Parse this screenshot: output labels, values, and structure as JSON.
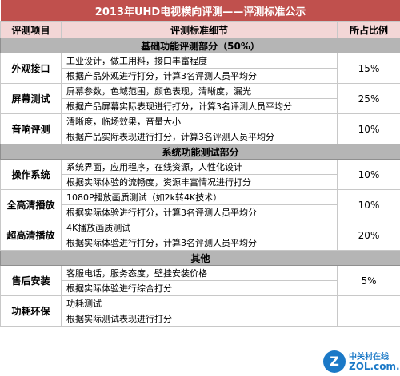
{
  "title": "2013年UHD电视横向评测——评测标准公示",
  "columns": [
    "评测项目",
    "评测标准细节",
    "所占比例"
  ],
  "sections": {
    "basic": "基础功能评测部分（50%）",
    "system": "系统功能测试部分",
    "other": "其他"
  },
  "items": [
    {
      "name": "外观接口",
      "details": [
        "工业设计，做工用料，接口丰富程度",
        "根据产品外观进行打分，计算3名评测人员平均分"
      ],
      "percent": "15%"
    },
    {
      "name": "屏幕测试",
      "details": [
        "屏幕参数，色域范围，颜色表现，清晰度，漏光",
        "根据产品屏幕实际表现进行打分，计算3名评测人员平均分"
      ],
      "percent": "25%"
    },
    {
      "name": "音响评测",
      "details": [
        "清晰度，临场效果，音量大小",
        "根据产品实际表现进行打分，计算3名评测人员平均分"
      ],
      "percent": "10%"
    },
    {
      "name": "操作系统",
      "details": [
        "系统界面，应用程序，在线资源，人性化设计",
        "根据实际体验的流畅度，资源丰富情况进行打分"
      ],
      "percent": "10%"
    },
    {
      "name": "全高清播放",
      "details": [
        "1080P播放画质测试（如2k转4K技术）",
        "根据实际体验进行打分，计算3名评测人员平均分"
      ],
      "percent": "10%"
    },
    {
      "name": "超高清播放",
      "details": [
        "4K播放画质测试",
        "根据实际体验进行打分，计算3名评测人员平均分"
      ],
      "percent": "20%"
    },
    {
      "name": "售后安装",
      "details": [
        "客服电话，服务态度，壁挂安装价格",
        "根据实际体验进行综合打分"
      ],
      "percent": "5%"
    },
    {
      "name": "功耗环保",
      "details": [
        "功耗测试",
        "根据实际测试表现进行打分"
      ],
      "percent": ""
    }
  ],
  "watermark": {
    "badge": "Z",
    "top": "中关村在线",
    "bottom": "ZOL.com.cn"
  },
  "colors": {
    "title_bg": "#c0504d",
    "header_bg": "#f3d6d6",
    "section_bg": "#b5b5b5"
  }
}
